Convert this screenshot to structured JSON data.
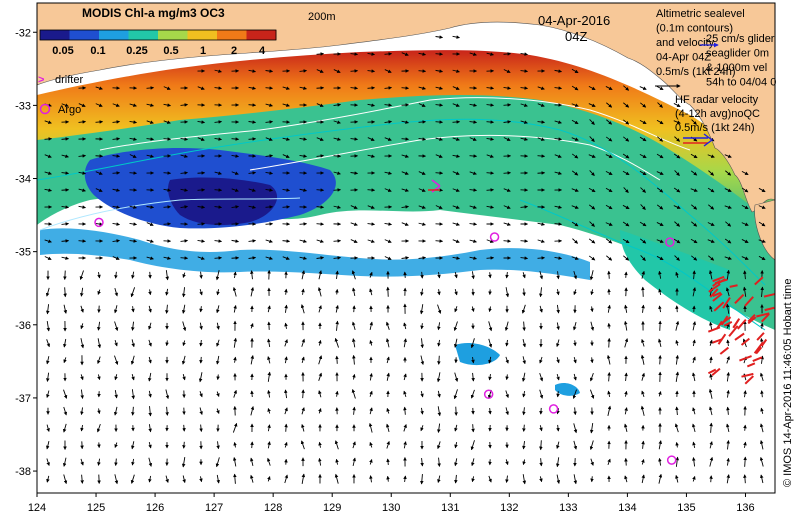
{
  "colorbar": {
    "title": "MODIS Chl-a mg/m3 OC3",
    "ticks": [
      "0.05",
      "0.1",
      "0.25",
      "0.5",
      "1",
      "2",
      "4"
    ],
    "colors": [
      "#1a1a8c",
      "#1f4fd0",
      "#1e9fe0",
      "#22c7a8",
      "#a6d84a",
      "#f0c020",
      "#f07a18",
      "#c8241a"
    ]
  },
  "contour_label": "200m",
  "date": {
    "day": "04-Apr-2016",
    "hour": "04Z"
  },
  "legend": {
    "drifter_symbol": ">",
    "drifter": "drifter",
    "argo": "Argo",
    "altimetric": [
      "Altimetric sealevel",
      "(0.1m contours)",
      "and velocity",
      "04-Apr 04Z",
      "0.5m/s (1kt 24h)"
    ],
    "seaglider": [
      "25 cm/s glider",
      "seaglider 0m",
      "& 1000m vel",
      "54h to 04/04 0"
    ],
    "hf_radar": [
      "HF radar velocity",
      "(4-12h avg)noQC",
      "0.5m/s (1kt 24h)"
    ]
  },
  "credit": "© IMOS 14-Apr-2016 11:46:05 Hobart time",
  "axes": {
    "x_ticks": [
      "124",
      "125",
      "126",
      "127",
      "128",
      "129",
      "130",
      "131",
      "132",
      "133",
      "134",
      "135",
      "136"
    ],
    "y_ticks": [
      "-32",
      "-33",
      "-34",
      "-35",
      "-36",
      "-37",
      "-38"
    ]
  },
  "argo_floats": [
    {
      "lon": 125.05,
      "lat": -34.6
    },
    {
      "lon": 131.75,
      "lat": -34.8
    },
    {
      "lon": 131.65,
      "lat": -36.95
    },
    {
      "lon": 132.75,
      "lat": -37.15
    },
    {
      "lon": 134.75,
      "lat": -37.85
    },
    {
      "lon": 134.72,
      "lat": -34.87
    }
  ],
  "colors": {
    "land": "#f7c898",
    "argo": "#e020e0",
    "hf_radar": "#e02020",
    "drifter": "#e020e0"
  }
}
